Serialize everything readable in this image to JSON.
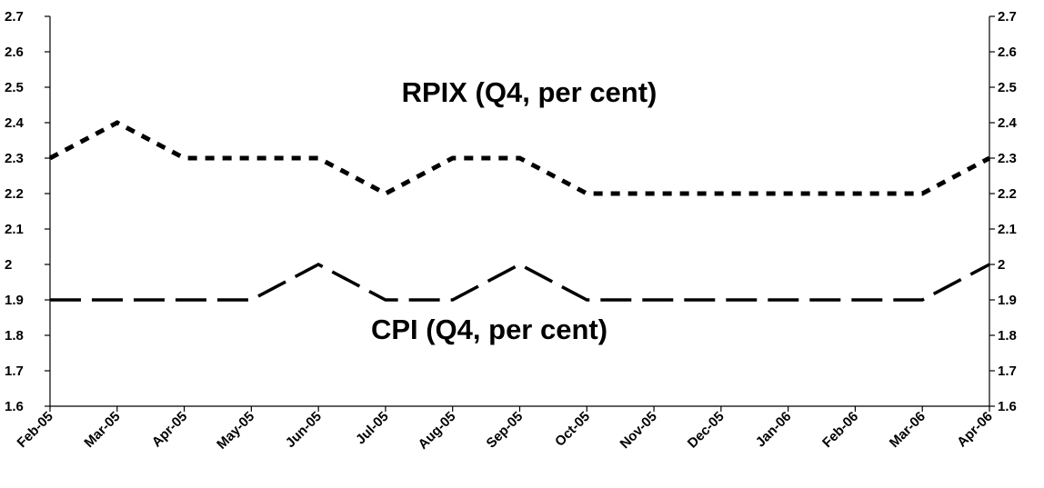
{
  "chart_data": {
    "type": "line",
    "categories": [
      "Feb-05",
      "Mar-05",
      "Apr-05",
      "May-05",
      "Jun-05",
      "Jul-05",
      "Aug-05",
      "Sep-05",
      "Oct-05",
      "Nov-05",
      "Dec-05",
      "Jan-06",
      "Feb-06",
      "Mar-06",
      "Apr-06"
    ],
    "series": [
      {
        "name": "RPIX (Q4, per cent)",
        "values": [
          2.3,
          2.4,
          2.3,
          2.3,
          2.3,
          2.2,
          2.3,
          2.3,
          2.2,
          2.2,
          2.2,
          2.2,
          2.2,
          2.2,
          2.3
        ],
        "style": "dotted"
      },
      {
        "name": "CPI (Q4, per cent)",
        "values": [
          1.9,
          1.9,
          1.9,
          1.9,
          2.0,
          1.9,
          1.9,
          2.0,
          1.9,
          1.9,
          1.9,
          1.9,
          1.9,
          1.9,
          2.0
        ],
        "style": "dashed"
      }
    ],
    "ylim": [
      1.6,
      2.7
    ],
    "yticks": [
      "1.6",
      "1.7",
      "1.8",
      "1.9",
      "2",
      "2.1",
      "2.2",
      "2.3",
      "2.4",
      "2.5",
      "2.6",
      "2.7"
    ],
    "secondary_y_axis": true,
    "grid": false,
    "line_color": "#000000",
    "annotations": [
      {
        "text": "RPIX (Q4, per cent)",
        "series": 0
      },
      {
        "text": "CPI (Q4, per cent)",
        "series": 1
      }
    ]
  }
}
